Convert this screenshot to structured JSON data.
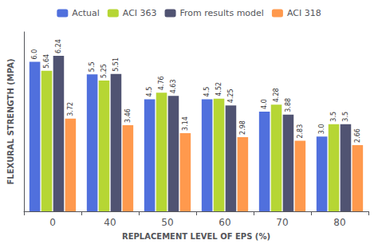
{
  "chart_data": {
    "type": "bar",
    "xlabel": "REPLACEMENT LEVEL OF EPS (%)",
    "ylabel": "FLEXURAL STRENGTH (MPA)",
    "categories": [
      "0",
      "40",
      "50",
      "60",
      "70",
      "80"
    ],
    "series": [
      {
        "name": "Actual",
        "values": [
          6.0,
          5.5,
          4.5,
          4.5,
          4.0,
          3.0
        ],
        "value_labels": [
          "6.0",
          "5.5",
          "4.5",
          "4.5",
          "4.0",
          "3.0"
        ]
      },
      {
        "name": "ACI 363",
        "values": [
          5.64,
          5.25,
          4.76,
          4.52,
          4.28,
          3.5
        ]
      },
      {
        "name": "From results model",
        "values": [
          6.24,
          5.51,
          4.63,
          4.25,
          3.88,
          3.5
        ]
      },
      {
        "name": "ACI 318",
        "values": [
          3.72,
          3.46,
          3.14,
          2.98,
          2.83,
          2.66
        ]
      }
    ],
    "ylim": [
      0,
      7.2
    ],
    "yticks": [],
    "tick_labels": "x",
    "grid": false,
    "legend": "top",
    "data_labels": true
  }
}
